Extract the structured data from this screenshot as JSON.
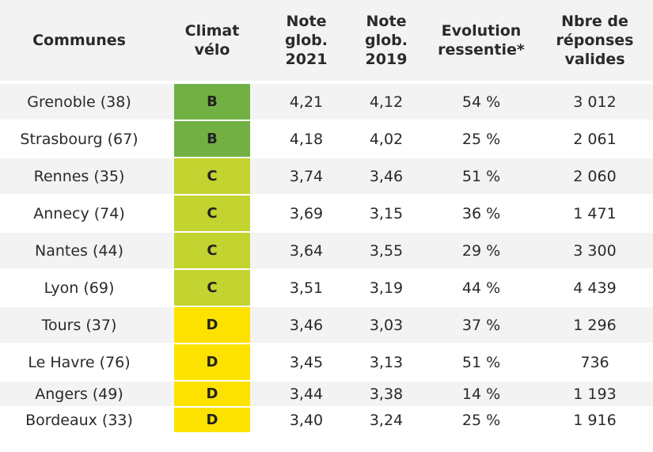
{
  "headers": {
    "commune": "Communes",
    "climat_1": "Climat",
    "climat_2": "vélo",
    "n21_1": "Note",
    "n21_2": "glob.",
    "n21_3": "2021",
    "n19_1": "Note",
    "n19_2": "glob.",
    "n19_3": "2019",
    "evo_1": "Evolution",
    "evo_2": "ressentie*",
    "rep_1": "Nbre de",
    "rep_2": "réponses",
    "rep_3": "valides"
  },
  "grade_colors": {
    "B": "#72b043",
    "C": "#c3d32f",
    "D": "#fde200"
  },
  "rows": [
    {
      "commune": "Grenoble (38)",
      "grade": "B",
      "n21": "4,21",
      "n19": "4,12",
      "evo": "54 %",
      "rep": "3 012"
    },
    {
      "commune": "Strasbourg (67)",
      "grade": "B",
      "n21": "4,18",
      "n19": "4,02",
      "evo": "25 %",
      "rep": "2 061"
    },
    {
      "commune": "Rennes (35)",
      "grade": "C",
      "n21": "3,74",
      "n19": "3,46",
      "evo": "51 %",
      "rep": "2 060"
    },
    {
      "commune": "Annecy (74)",
      "grade": "C",
      "n21": "3,69",
      "n19": "3,15",
      "evo": "36 %",
      "rep": "1 471"
    },
    {
      "commune": "Nantes (44)",
      "grade": "C",
      "n21": "3,64",
      "n19": "3,55",
      "evo": "29 %",
      "rep": "3 300"
    },
    {
      "commune": "Lyon (69)",
      "grade": "C",
      "n21": "3,51",
      "n19": "3,19",
      "evo": "44 %",
      "rep": "4 439"
    },
    {
      "commune": "Tours (37)",
      "grade": "D",
      "n21": "3,46",
      "n19": "3,03",
      "evo": "37 %",
      "rep": "1 296"
    },
    {
      "commune": "Le Havre (76)",
      "grade": "D",
      "n21": "3,45",
      "n19": "3,13",
      "evo": "51 %",
      "rep": "736"
    },
    {
      "commune": "Angers (49)",
      "grade": "D",
      "n21": "3,44",
      "n19": "3,38",
      "evo": "14 %",
      "rep": "1 193"
    },
    {
      "commune": "Bordeaux (33)",
      "grade": "D",
      "n21": "3,40",
      "n19": "3,24",
      "evo": "25 %",
      "rep": "1 916"
    }
  ]
}
